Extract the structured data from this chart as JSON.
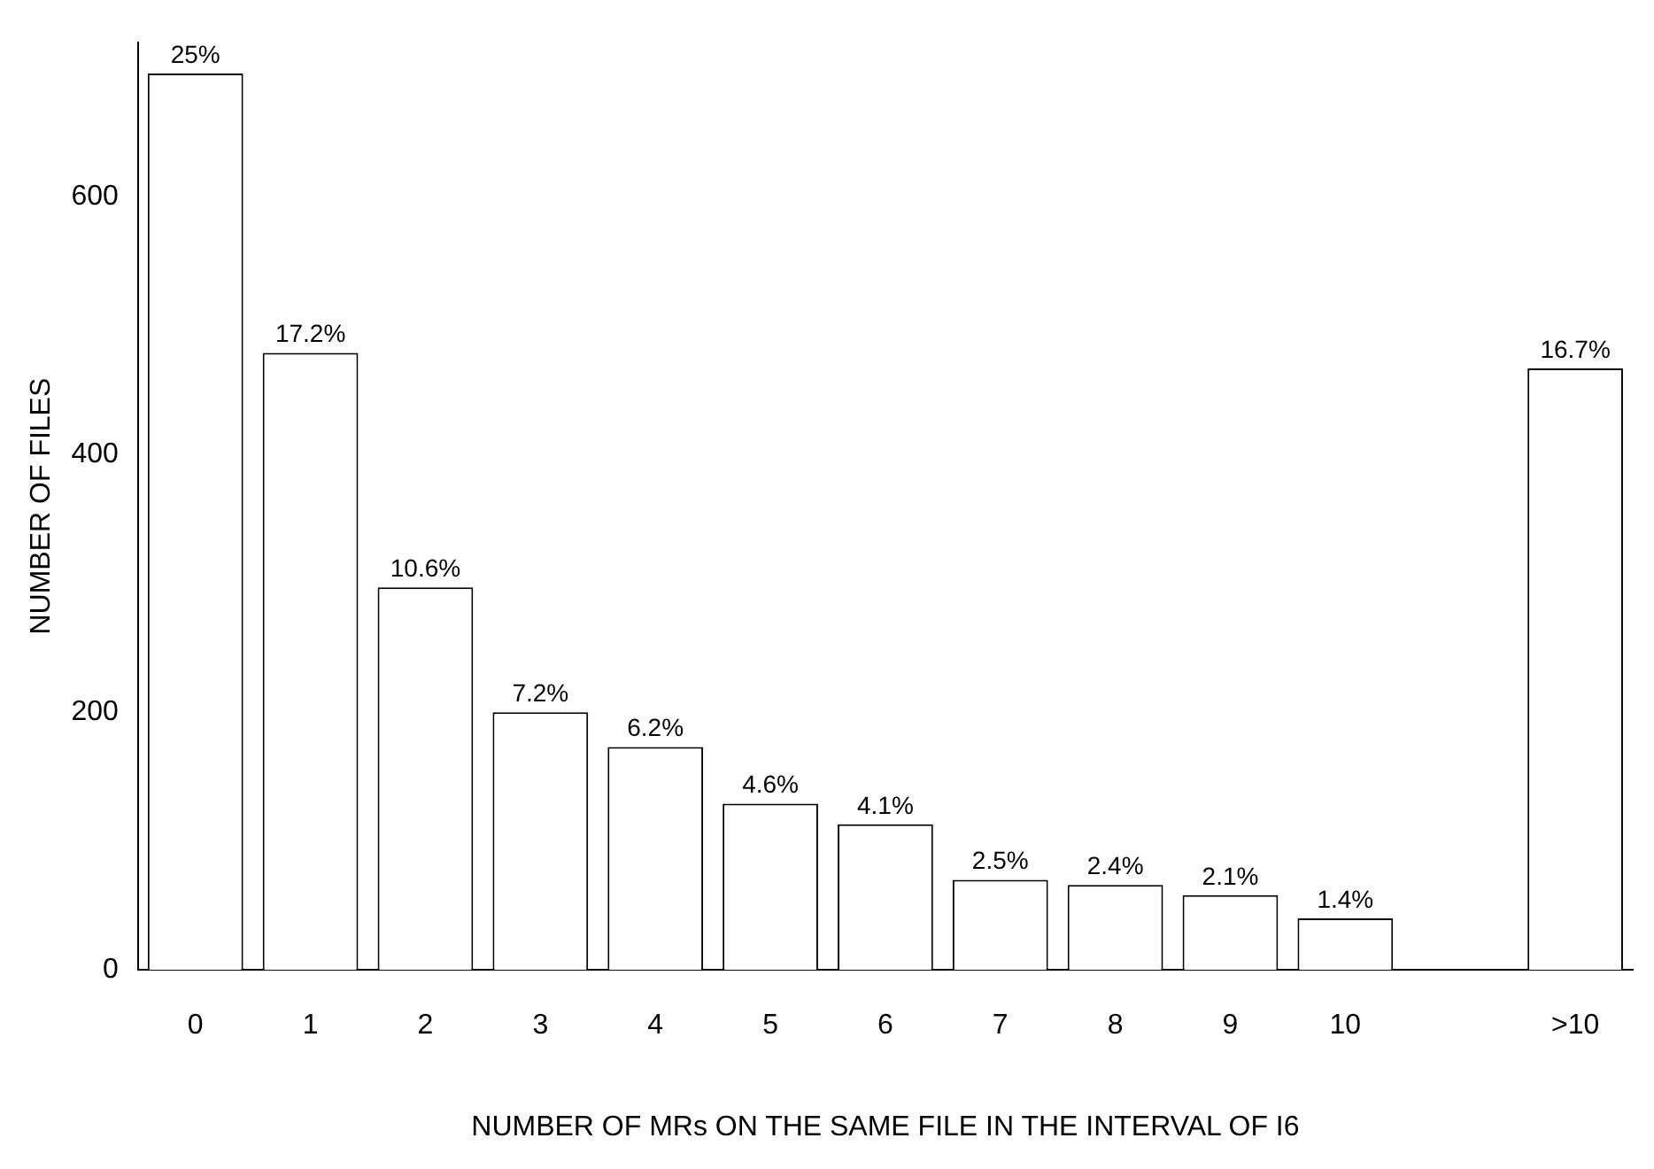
{
  "chart_data": {
    "type": "bar",
    "xlabel": "NUMBER OF MRs ON THE SAME FILE IN THE INTERVAL OF I6",
    "ylabel": "NUMBER OF FILES",
    "categories": [
      "0",
      "1",
      "2",
      "3",
      "4",
      "5",
      "6",
      "7",
      "8",
      "9",
      "10",
      null,
      ">10"
    ],
    "values": [
      696,
      479,
      297,
      200,
      173,
      129,
      113,
      70,
      66,
      58,
      40,
      0,
      467
    ],
    "annotations": [
      {
        "text": "25%",
        "x": "0",
        "y": 696
      },
      {
        "text": "17.2%",
        "x": "1",
        "y": 479
      },
      {
        "text": "10.6%",
        "x": "2",
        "y": 297
      },
      {
        "text": "7.2%",
        "x": "3",
        "y": 200
      },
      {
        "text": "6.2%",
        "x": "4",
        "y": 173
      },
      {
        "text": "4.6%",
        "x": "5",
        "y": 129
      },
      {
        "text": "4.1%",
        "x": "6",
        "y": 113
      },
      {
        "text": "2.5%",
        "x": "7",
        "y": 70
      },
      {
        "text": "2.4%",
        "x": "8",
        "y": 66
      },
      {
        "text": "2.1%",
        "x": "9",
        "y": 58
      },
      {
        "text": "1.4%",
        "x": "10",
        "y": 40
      },
      {
        "text": "16.7%",
        "x": ">10",
        "y": 467
      }
    ],
    "color": "#ffffff",
    "ylim": [
      0,
      720
    ],
    "yticks": [
      0,
      200,
      400,
      600
    ],
    "grid": false,
    "legend": false
  }
}
